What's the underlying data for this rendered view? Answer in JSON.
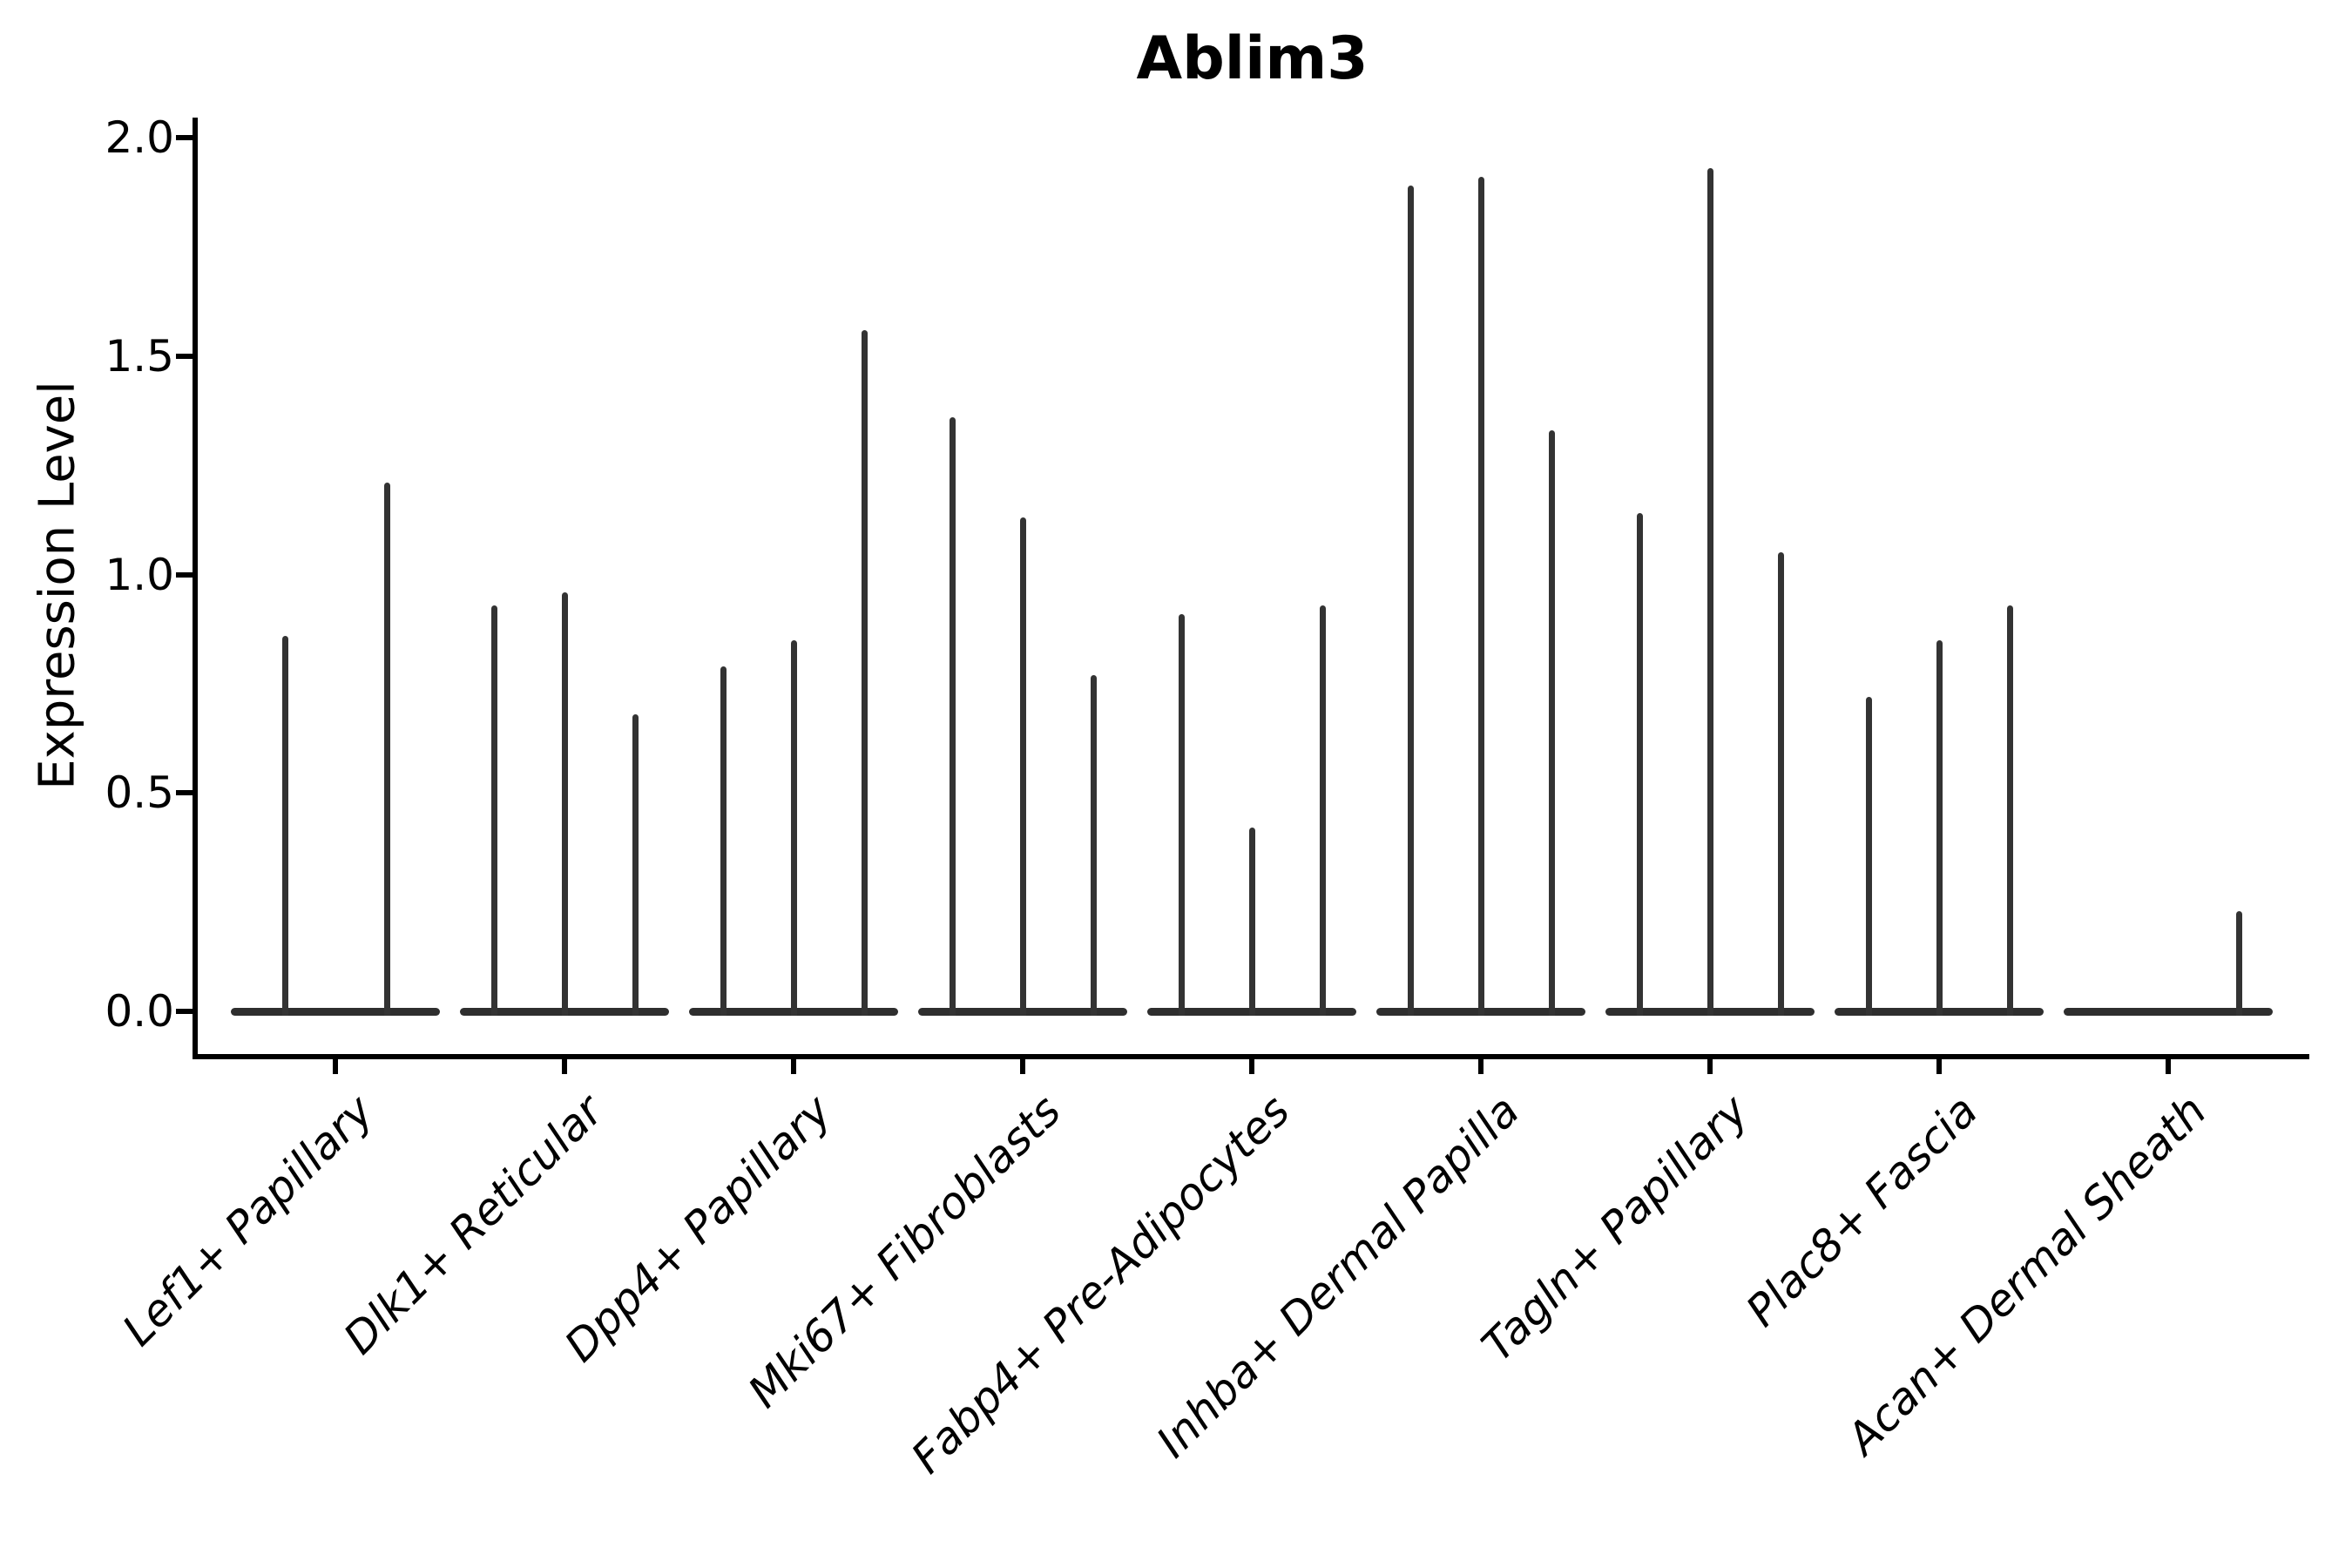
{
  "title": "Ablim3",
  "y_axis": {
    "label": "Expression Level",
    "tick_labels": [
      "2.0",
      "1.5",
      "1.0",
      "0.5",
      "0.0"
    ],
    "tick_values": [
      2.0,
      1.5,
      1.0,
      0.5,
      0.0
    ]
  },
  "x_axis": {
    "tick_rotation_degrees": 45,
    "label_style": "italic"
  },
  "colors": {
    "violin_stroke": "#333333",
    "axis": "#000000",
    "text": "#000000",
    "background": "#ffffff"
  },
  "chart_data": {
    "type": "violin",
    "title": "Ablim3",
    "xlabel": "",
    "ylabel": "Expression Level",
    "ylim": [
      0,
      2.05
    ],
    "yticks": [
      0.0,
      0.5,
      1.0,
      1.5,
      2.0
    ],
    "grid": false,
    "legend": null,
    "x_tick_rotation": 45,
    "description": "Single-cell expression violin plot; each category holds up to 3 very thin spike-like violins whose mass sits at 0, spike tops mark maximum expression",
    "categories": [
      "Lef1+ Papillary",
      "Dlk1+ Reticular",
      "Dpp4+ Papillary",
      "Mki67+ Fibroblasts",
      "Fabp4+ Pre-Adipocytes",
      "Inhba+ Dermal Papilla",
      "Tagln+ Papillary",
      "Plac8+ Fascia",
      "Acan+ Dermal Sheath"
    ],
    "violin_max_values_per_category": [
      [
        0.86,
        1.21
      ],
      [
        0.93,
        0.96,
        0.68
      ],
      [
        0.79,
        0.85,
        1.56
      ],
      [
        1.36,
        1.13,
        0.77
      ],
      [
        0.91,
        0.42,
        0.93
      ],
      [
        1.89,
        1.91,
        1.33
      ],
      [
        1.14,
        1.93,
        1.05
      ],
      [
        0.72,
        0.85,
        0.93
      ],
      [
        0.0,
        0.0,
        0.23
      ]
    ]
  },
  "groups": [
    {
      "label": "Lef1+ Papillary",
      "violins": [
        {
          "dx": -58,
          "v": 0.86
        },
        {
          "dx": 59,
          "v": 1.21
        }
      ]
    },
    {
      "label": "Dlk1+ Reticular",
      "violins": [
        {
          "dx": -81,
          "v": 0.93
        },
        {
          "dx": 0,
          "v": 0.96
        },
        {
          "dx": 81,
          "v": 0.68
        }
      ]
    },
    {
      "label": "Dpp4+ Papillary",
      "violins": [
        {
          "dx": -81,
          "v": 0.79
        },
        {
          "dx": 0,
          "v": 0.85
        },
        {
          "dx": 81,
          "v": 1.56
        }
      ]
    },
    {
      "label": "Mki67+ Fibroblasts",
      "violins": [
        {
          "dx": -81,
          "v": 1.36
        },
        {
          "dx": 0,
          "v": 1.13
        },
        {
          "dx": 81,
          "v": 0.77
        }
      ]
    },
    {
      "label": "Fabp4+ Pre-Adipocytes",
      "violins": [
        {
          "dx": -81,
          "v": 0.91
        },
        {
          "dx": 0,
          "v": 0.42
        },
        {
          "dx": 81,
          "v": 0.93
        }
      ]
    },
    {
      "label": "Inhba+ Dermal Papilla",
      "violins": [
        {
          "dx": -81,
          "v": 1.89
        },
        {
          "dx": 0,
          "v": 1.91
        },
        {
          "dx": 81,
          "v": 1.33
        }
      ]
    },
    {
      "label": "Tagln+ Papillary",
      "violins": [
        {
          "dx": -81,
          "v": 1.14
        },
        {
          "dx": 0,
          "v": 1.93
        },
        {
          "dx": 81,
          "v": 1.05
        }
      ]
    },
    {
      "label": "Plac8+ Fascia",
      "violins": [
        {
          "dx": -81,
          "v": 0.72
        },
        {
          "dx": 0,
          "v": 0.85
        },
        {
          "dx": 81,
          "v": 0.93
        }
      ]
    },
    {
      "label": "Acan+ Dermal Sheath",
      "violins": [
        {
          "dx": -81,
          "v": 0.0
        },
        {
          "dx": 0,
          "v": 0.0
        },
        {
          "dx": 81,
          "v": 0.23
        }
      ]
    }
  ]
}
